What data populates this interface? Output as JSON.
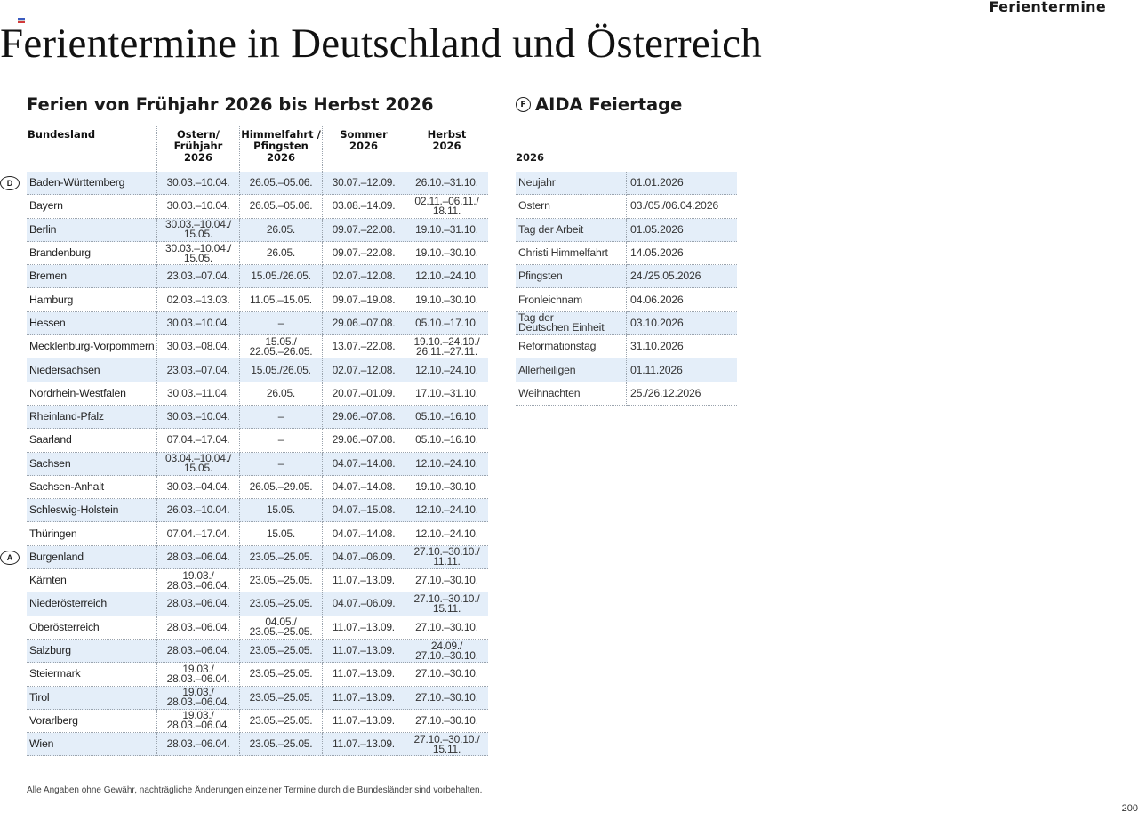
{
  "header": {
    "corner_title": "Ferientermine",
    "main_title": "Ferientermine in Deutschland und Österreich"
  },
  "holidays": {
    "title": "Ferien von Frühjahr 2026 bis Herbst 2026",
    "columns": [
      "Bundesland",
      "Ostern/\nFrühjahr\n2026",
      "Himmelfahrt /\nPfingsten\n2026",
      "Sommer\n2026",
      "Herbst\n2026"
    ],
    "groups": [
      {
        "label": "D",
        "row": 0
      },
      {
        "label": "A",
        "row": 16
      }
    ],
    "rows": [
      [
        "Baden-Württemberg",
        "30.03.–10.04.",
        "26.05.–05.06.",
        "30.07.–12.09.",
        "26.10.–31.10."
      ],
      [
        "Bayern",
        "30.03.–10.04.",
        "26.05.–05.06.",
        "03.08.–14.09.",
        "02.11.–06.11./\n18.11."
      ],
      [
        "Berlin",
        "30.03.–10.04./\n15.05.",
        "26.05.",
        "09.07.–22.08.",
        "19.10.–31.10."
      ],
      [
        "Brandenburg",
        "30.03.–10.04./\n15.05.",
        "26.05.",
        "09.07.–22.08.",
        "19.10.–30.10."
      ],
      [
        "Bremen",
        "23.03.–07.04.",
        "15.05./26.05.",
        "02.07.–12.08.",
        "12.10.–24.10."
      ],
      [
        "Hamburg",
        "02.03.–13.03.",
        "11.05.–15.05.",
        "09.07.–19.08.",
        "19.10.–30.10."
      ],
      [
        "Hessen",
        "30.03.–10.04.",
        "–",
        "29.06.–07.08.",
        "05.10.–17.10."
      ],
      [
        "Mecklenburg-Vorpommern",
        "30.03.–08.04.",
        "15.05./\n22.05.–26.05.",
        "13.07.–22.08.",
        "19.10.–24.10./\n26.11.–27.11."
      ],
      [
        "Niedersachsen",
        "23.03.–07.04.",
        "15.05./26.05.",
        "02.07.–12.08.",
        "12.10.–24.10."
      ],
      [
        "Nordrhein-Westfalen",
        "30.03.–11.04.",
        "26.05.",
        "20.07.–01.09.",
        "17.10.–31.10."
      ],
      [
        "Rheinland-Pfalz",
        "30.03.–10.04.",
        "–",
        "29.06.–07.08.",
        "05.10.–16.10."
      ],
      [
        "Saarland",
        "07.04.–17.04.",
        "–",
        "29.06.–07.08.",
        "05.10.–16.10."
      ],
      [
        "Sachsen",
        "03.04.–10.04./\n15.05.",
        "–",
        "04.07.–14.08.",
        "12.10.–24.10."
      ],
      [
        "Sachsen-Anhalt",
        "30.03.–04.04.",
        "26.05.–29.05.",
        "04.07.–14.08.",
        "19.10.–30.10."
      ],
      [
        "Schleswig-Holstein",
        "26.03.–10.04.",
        "15.05.",
        "04.07.–15.08.",
        "12.10.–24.10."
      ],
      [
        "Thüringen",
        "07.04.–17.04.",
        "15.05.",
        "04.07.–14.08.",
        "12.10.–24.10."
      ],
      [
        "Burgenland",
        "28.03.–06.04.",
        "23.05.–25.05.",
        "04.07.–06.09.",
        "27.10.–30.10./\n11.11."
      ],
      [
        "Kärnten",
        "19.03./\n28.03.–06.04.",
        "23.05.–25.05.",
        "11.07.–13.09.",
        "27.10.–30.10."
      ],
      [
        "Niederösterreich",
        "28.03.–06.04.",
        "23.05.–25.05.",
        "04.07.–06.09.",
        "27.10.–30.10./\n15.11."
      ],
      [
        "Oberösterreich",
        "28.03.–06.04.",
        "04.05./\n23.05.–25.05.",
        "11.07.–13.09.",
        "27.10.–30.10."
      ],
      [
        "Salzburg",
        "28.03.–06.04.",
        "23.05.–25.05.",
        "11.07.–13.09.",
        "24.09./\n27.10.–30.10."
      ],
      [
        "Steiermark",
        "19.03./\n28.03.–06.04.",
        "23.05.–25.05.",
        "11.07.–13.09.",
        "27.10.–30.10."
      ],
      [
        "Tirol",
        "19.03./\n28.03.–06.04.",
        "23.05.–25.05.",
        "11.07.–13.09.",
        "27.10.–30.10."
      ],
      [
        "Vorarlberg",
        "19.03./\n28.03.–06.04.",
        "23.05.–25.05.",
        "11.07.–13.09.",
        "27.10.–30.10."
      ],
      [
        "Wien",
        "28.03.–06.04.",
        "23.05.–25.05.",
        "11.07.–13.09.",
        "27.10.–30.10./\n15.11."
      ]
    ]
  },
  "feiertage": {
    "badge": "F",
    "title": "AIDA Feiertage",
    "year": "2026",
    "rows": [
      [
        "Neujahr",
        "01.01.2026"
      ],
      [
        "Ostern",
        "03./05./06.04.2026"
      ],
      [
        "Tag der Arbeit",
        "01.05.2026"
      ],
      [
        "Christi Himmelfahrt",
        "14.05.2026"
      ],
      [
        "Pfingsten",
        "24./25.05.2026"
      ],
      [
        "Fronleichnam",
        "04.06.2026"
      ],
      [
        "Tag der\nDeutschen Einheit",
        "03.10.2026"
      ],
      [
        "Reformationstag",
        "31.10.2026"
      ],
      [
        "Allerheiligen",
        "01.11.2026"
      ],
      [
        "Weihnachten",
        "25./26.12.2026"
      ]
    ]
  },
  "footer": {
    "note": "Alle Angaben ohne Gewähr, nachträgliche Änderungen einzelner Termine durch die Bundesländer sind vorbehalten.",
    "page_number": "200"
  },
  "colors": {
    "row_stripe": "#e4eef9",
    "divider": "#9aa3ad",
    "flag_top": "#3b5bbf",
    "flag_middle": "#ffffff",
    "flag_bottom": "#d23a3a"
  }
}
